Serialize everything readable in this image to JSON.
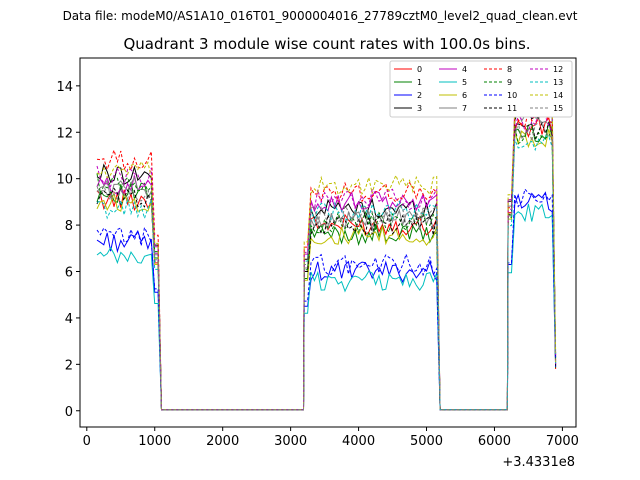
{
  "header": {
    "data_file_caption": "Data file: modeM0/AS1A10_016T01_9000004016_27789cztM0_level2_quad_clean.evt"
  },
  "chart_data": {
    "type": "line",
    "title": "Quadrant 3 module wise count rates with 100.0s bins.",
    "xlabel": "",
    "ylabel": "",
    "x_offset_label": "+3.4331e8",
    "xlim": [
      -100,
      7200
    ],
    "ylim": [
      -0.7,
      15.2
    ],
    "x_ticks": [
      0,
      1000,
      2000,
      3000,
      4000,
      5000,
      6000,
      7000
    ],
    "x_tick_labels": [
      "0",
      "1000",
      "2000",
      "3000",
      "4000",
      "5000",
      "6000",
      "7000"
    ],
    "y_ticks": [
      0,
      2,
      4,
      6,
      8,
      10,
      12,
      14
    ],
    "y_tick_labels": [
      "0",
      "2",
      "4",
      "6",
      "8",
      "10",
      "12",
      "14"
    ],
    "legend_position": "upper-right",
    "segments": [
      {
        "x_start": 150,
        "x_end": 1050
      },
      {
        "x_start": 3200,
        "x_end": 5150
      },
      {
        "x_start": 6200,
        "x_end": 6900
      }
    ],
    "zero_x": [
      1100,
      1300,
      1500,
      1700,
      1900,
      2100,
      2300,
      2500,
      2700,
      2900,
      3100,
      3200,
      5200,
      5400,
      5600,
      5800,
      6000,
      6200
    ],
    "series": [
      {
        "name": "0",
        "color": "#ff0000",
        "dash": false,
        "levels": [
          9.1,
          8.0,
          12.2
        ]
      },
      {
        "name": "1",
        "color": "#008000",
        "dash": false,
        "levels": [
          9.4,
          7.6,
          12.0
        ]
      },
      {
        "name": "2",
        "color": "#0000ff",
        "dash": false,
        "levels": [
          7.3,
          6.0,
          9.0
        ]
      },
      {
        "name": "3",
        "color": "#000000",
        "dash": false,
        "levels": [
          10.2,
          8.7,
          12.9
        ]
      },
      {
        "name": "4",
        "color": "#bf00bf",
        "dash": false,
        "levels": [
          9.7,
          9.0,
          13.0
        ]
      },
      {
        "name": "5",
        "color": "#00bfbf",
        "dash": false,
        "levels": [
          6.6,
          5.6,
          8.5
        ]
      },
      {
        "name": "6",
        "color": "#bfbf00",
        "dash": false,
        "levels": [
          9.0,
          7.5,
          11.8
        ]
      },
      {
        "name": "7",
        "color": "#808080",
        "dash": false,
        "levels": [
          9.6,
          8.2,
          12.6
        ]
      },
      {
        "name": "8",
        "color": "#ff0000",
        "dash": true,
        "levels": [
          10.8,
          9.4,
          12.5
        ]
      },
      {
        "name": "9",
        "color": "#008000",
        "dash": true,
        "levels": [
          9.8,
          8.1,
          11.9
        ]
      },
      {
        "name": "10",
        "color": "#0000ff",
        "dash": true,
        "levels": [
          7.5,
          6.3,
          9.1
        ]
      },
      {
        "name": "11",
        "color": "#000000",
        "dash": true,
        "levels": [
          9.2,
          8.0,
          12.1
        ]
      },
      {
        "name": "12",
        "color": "#bf00bf",
        "dash": true,
        "levels": [
          10.1,
          9.1,
          12.4
        ]
      },
      {
        "name": "13",
        "color": "#00bfbf",
        "dash": true,
        "levels": [
          8.7,
          8.6,
          11.4
        ]
      },
      {
        "name": "14",
        "color": "#bfbf00",
        "dash": true,
        "levels": [
          10.3,
          9.7,
          13.3
        ]
      },
      {
        "name": "15",
        "color": "#808080",
        "dash": true,
        "levels": [
          9.3,
          8.4,
          12.0
        ]
      }
    ]
  }
}
